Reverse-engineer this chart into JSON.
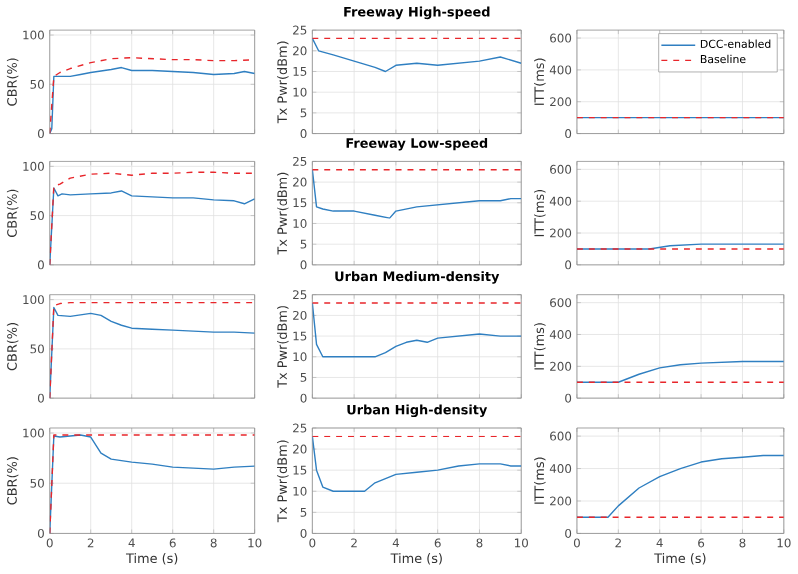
{
  "chart_data": [
    {
      "type": "line",
      "ylabel": "CBR(%)",
      "xlim": [
        0,
        10
      ],
      "ylim": [
        0,
        105
      ],
      "xticks": [
        0,
        2,
        4,
        6,
        8,
        10
      ],
      "yticks": [
        0,
        50,
        100
      ],
      "grid": true,
      "tick_labels": "y",
      "series": [
        {
          "color": "#2f7fc1",
          "line_style": "solid",
          "x": [
            0,
            0.1,
            0.2,
            0.5,
            1,
            1.5,
            2,
            3,
            3.5,
            4,
            5,
            6,
            7,
            8,
            9,
            9.5,
            10
          ],
          "values": [
            0,
            5,
            58,
            58,
            58,
            60,
            62,
            65,
            67,
            64,
            64,
            63,
            62,
            60,
            61,
            63,
            61
          ]
        },
        {
          "color": "#e8262b",
          "line_style": "dashed",
          "x": [
            0,
            0.2,
            0.5,
            1,
            2,
            3,
            4,
            5,
            6,
            7,
            8,
            9,
            10
          ],
          "values": [
            0,
            58,
            62,
            66,
            72,
            76,
            77,
            76,
            75,
            75,
            74,
            74,
            75
          ]
        }
      ]
    },
    {
      "type": "line",
      "title": "Freeway High-speed",
      "ylabel": "Tx Pwr(dBm)",
      "xlim": [
        0,
        10
      ],
      "ylim": [
        0,
        25
      ],
      "xticks": [
        0,
        2,
        4,
        6,
        8,
        10
      ],
      "yticks": [
        0,
        5,
        10,
        15,
        20,
        25
      ],
      "grid": true,
      "tick_labels": "y",
      "series": [
        {
          "color": "#2f7fc1",
          "line_style": "solid",
          "x": [
            0,
            0.3,
            1,
            2,
            3,
            3.5,
            4,
            5,
            6,
            7,
            8,
            9,
            10
          ],
          "values": [
            23,
            20,
            19,
            17.5,
            16,
            15,
            16.5,
            17,
            16.5,
            17,
            17.5,
            18.5,
            17
          ]
        },
        {
          "color": "#e8262b",
          "line_style": "dashed",
          "x": [
            0,
            10
          ],
          "values": [
            23,
            23
          ]
        }
      ]
    },
    {
      "type": "line",
      "ylabel": "ITT(ms)",
      "xlim": [
        0,
        10
      ],
      "ylim": [
        0,
        650
      ],
      "xticks": [
        0,
        2,
        4,
        6,
        8,
        10
      ],
      "yticks": [
        0,
        200,
        400,
        600
      ],
      "grid": true,
      "tick_labels": "y",
      "legend": "top right",
      "series": [
        {
          "name": "DCC-enabled",
          "color": "#2f7fc1",
          "line_style": "solid",
          "x": [
            0,
            10
          ],
          "values": [
            100,
            100
          ]
        },
        {
          "name": "Baseline",
          "color": "#e8262b",
          "line_style": "dashed",
          "x": [
            0,
            10
          ],
          "values": [
            100,
            100
          ]
        }
      ]
    },
    {
      "type": "line",
      "ylabel": "CBR(%)",
      "xlim": [
        0,
        10
      ],
      "ylim": [
        0,
        105
      ],
      "xticks": [
        0,
        2,
        4,
        6,
        8,
        10
      ],
      "yticks": [
        0,
        50,
        100
      ],
      "grid": true,
      "tick_labels": "y",
      "series": [
        {
          "color": "#2f7fc1",
          "line_style": "solid",
          "x": [
            0,
            0.2,
            0.4,
            0.6,
            1,
            2,
            3,
            3.5,
            4,
            5,
            6,
            7,
            8,
            9,
            9.5,
            10
          ],
          "values": [
            0,
            78,
            70,
            72,
            71,
            72,
            73,
            75,
            70,
            69,
            68,
            68,
            66,
            65,
            62,
            67
          ]
        },
        {
          "color": "#e8262b",
          "line_style": "dashed",
          "x": [
            0,
            0.2,
            0.5,
            1,
            2,
            3,
            4,
            5,
            6,
            7,
            8,
            9,
            10
          ],
          "values": [
            0,
            80,
            82,
            88,
            92,
            93,
            91,
            93,
            93,
            94,
            94,
            93,
            93
          ]
        }
      ]
    },
    {
      "type": "line",
      "title": "Freeway Low-speed",
      "ylabel": "Tx Pwr(dBm)",
      "xlim": [
        0,
        10
      ],
      "ylim": [
        0,
        25
      ],
      "xticks": [
        0,
        2,
        4,
        6,
        8,
        10
      ],
      "yticks": [
        0,
        5,
        10,
        15,
        20,
        25
      ],
      "grid": true,
      "tick_labels": "y",
      "series": [
        {
          "color": "#2f7fc1",
          "line_style": "solid",
          "x": [
            0,
            0.2,
            0.5,
            1,
            2,
            3,
            3.7,
            4,
            5,
            6,
            7,
            8,
            9,
            9.5,
            10
          ],
          "values": [
            23,
            14,
            13.5,
            13,
            13,
            12,
            11.3,
            13,
            14,
            14.5,
            15,
            15.5,
            15.5,
            16,
            16
          ]
        },
        {
          "color": "#e8262b",
          "line_style": "dashed",
          "x": [
            0,
            10
          ],
          "values": [
            23,
            23
          ]
        }
      ]
    },
    {
      "type": "line",
      "ylabel": "ITT(ms)",
      "xlim": [
        0,
        10
      ],
      "ylim": [
        0,
        650
      ],
      "xticks": [
        0,
        2,
        4,
        6,
        8,
        10
      ],
      "yticks": [
        0,
        200,
        400,
        600
      ],
      "grid": true,
      "tick_labels": "y",
      "series": [
        {
          "color": "#2f7fc1",
          "line_style": "solid",
          "x": [
            0,
            3.5,
            4.5,
            6,
            8,
            10
          ],
          "values": [
            100,
            100,
            120,
            130,
            130,
            130
          ]
        },
        {
          "color": "#e8262b",
          "line_style": "dashed",
          "x": [
            0,
            10
          ],
          "values": [
            100,
            100
          ]
        }
      ]
    },
    {
      "type": "line",
      "ylabel": "CBR(%)",
      "xlim": [
        0,
        10
      ],
      "ylim": [
        0,
        105
      ],
      "xticks": [
        0,
        2,
        4,
        6,
        8,
        10
      ],
      "yticks": [
        0,
        50,
        100
      ],
      "grid": true,
      "tick_labels": "y",
      "series": [
        {
          "color": "#2f7fc1",
          "line_style": "solid",
          "x": [
            0,
            0.2,
            0.4,
            1,
            2,
            2.5,
            3,
            3.5,
            4,
            5,
            6,
            7,
            8,
            9,
            10
          ],
          "values": [
            0,
            92,
            84,
            83,
            86,
            84,
            78,
            74,
            71,
            70,
            69,
            68,
            67,
            67,
            66
          ]
        },
        {
          "color": "#e8262b",
          "line_style": "dashed",
          "x": [
            0,
            0.2,
            0.5,
            1,
            10
          ],
          "values": [
            0,
            94,
            96,
            97,
            97
          ]
        }
      ]
    },
    {
      "type": "line",
      "title": "Urban Medium-density",
      "ylabel": "Tx Pwr(dBm)",
      "xlim": [
        0,
        10
      ],
      "ylim": [
        0,
        25
      ],
      "xticks": [
        0,
        2,
        4,
        6,
        8,
        10
      ],
      "yticks": [
        0,
        5,
        10,
        15,
        20,
        25
      ],
      "grid": true,
      "tick_labels": "y",
      "series": [
        {
          "color": "#2f7fc1",
          "line_style": "solid",
          "x": [
            0,
            0.2,
            0.5,
            1,
            3,
            3.5,
            4,
            4.5,
            5,
            5.5,
            6,
            7,
            8,
            9,
            10
          ],
          "values": [
            23,
            13,
            10,
            10,
            10,
            11,
            12.5,
            13.5,
            14,
            13.5,
            14.5,
            15,
            15.5,
            15,
            15
          ]
        },
        {
          "color": "#e8262b",
          "line_style": "dashed",
          "x": [
            0,
            10
          ],
          "values": [
            23,
            23
          ]
        }
      ]
    },
    {
      "type": "line",
      "ylabel": "ITT(ms)",
      "xlim": [
        0,
        10
      ],
      "ylim": [
        0,
        650
      ],
      "xticks": [
        0,
        2,
        4,
        6,
        8,
        10
      ],
      "yticks": [
        0,
        200,
        400,
        600
      ],
      "grid": true,
      "tick_labels": "y",
      "series": [
        {
          "color": "#2f7fc1",
          "line_style": "solid",
          "x": [
            0,
            2,
            3,
            4,
            5,
            6,
            8,
            10
          ],
          "values": [
            100,
            100,
            150,
            190,
            210,
            220,
            230,
            230
          ]
        },
        {
          "color": "#e8262b",
          "line_style": "dashed",
          "x": [
            0,
            10
          ],
          "values": [
            100,
            100
          ]
        }
      ]
    },
    {
      "type": "line",
      "ylabel": "CBR(%)",
      "xlabel": "Time (s)",
      "xlim": [
        0,
        10
      ],
      "ylim": [
        0,
        105
      ],
      "xticks": [
        0,
        2,
        4,
        6,
        8,
        10
      ],
      "yticks": [
        0,
        50,
        100
      ],
      "grid": true,
      "series": [
        {
          "color": "#2f7fc1",
          "line_style": "solid",
          "x": [
            0,
            0.2,
            0.5,
            1,
            1.5,
            2,
            2.5,
            3,
            4,
            5,
            6,
            7,
            8,
            9,
            10
          ],
          "values": [
            0,
            97,
            96,
            97,
            98,
            96,
            80,
            74,
            71,
            69,
            66,
            65,
            64,
            66,
            67
          ]
        },
        {
          "color": "#e8262b",
          "line_style": "dashed",
          "x": [
            0,
            0.2,
            10
          ],
          "values": [
            0,
            98,
            98
          ]
        }
      ]
    },
    {
      "type": "line",
      "title": "Urban High-density",
      "ylabel": "Tx Pwr(dBm)",
      "xlabel": "Time (s)",
      "xlim": [
        0,
        10
      ],
      "ylim": [
        0,
        25
      ],
      "xticks": [
        0,
        2,
        4,
        6,
        8,
        10
      ],
      "yticks": [
        0,
        5,
        10,
        15,
        20,
        25
      ],
      "grid": true,
      "series": [
        {
          "color": "#2f7fc1",
          "line_style": "solid",
          "x": [
            0,
            0.2,
            0.5,
            1,
            2.5,
            3,
            4,
            5,
            6,
            7,
            8,
            9,
            9.5,
            10
          ],
          "values": [
            23,
            15,
            11,
            10,
            10,
            12,
            14,
            14.5,
            15,
            16,
            16.5,
            16.5,
            16,
            16
          ]
        },
        {
          "color": "#e8262b",
          "line_style": "dashed",
          "x": [
            0,
            10
          ],
          "values": [
            23,
            23
          ]
        }
      ]
    },
    {
      "type": "line",
      "ylabel": "ITT(ms)",
      "xlabel": "Time (s)",
      "xlim": [
        0,
        10
      ],
      "ylim": [
        0,
        650
      ],
      "xticks": [
        0,
        2,
        4,
        6,
        8,
        10
      ],
      "yticks": [
        0,
        200,
        400,
        600
      ],
      "grid": true,
      "series": [
        {
          "color": "#2f7fc1",
          "line_style": "solid",
          "x": [
            0,
            1.5,
            2,
            3,
            4,
            5,
            6,
            7,
            8,
            9,
            10
          ],
          "values": [
            100,
            100,
            170,
            280,
            350,
            400,
            440,
            460,
            470,
            480,
            480
          ]
        },
        {
          "color": "#e8262b",
          "line_style": "dashed",
          "x": [
            0,
            10
          ],
          "values": [
            100,
            100
          ]
        }
      ]
    }
  ]
}
